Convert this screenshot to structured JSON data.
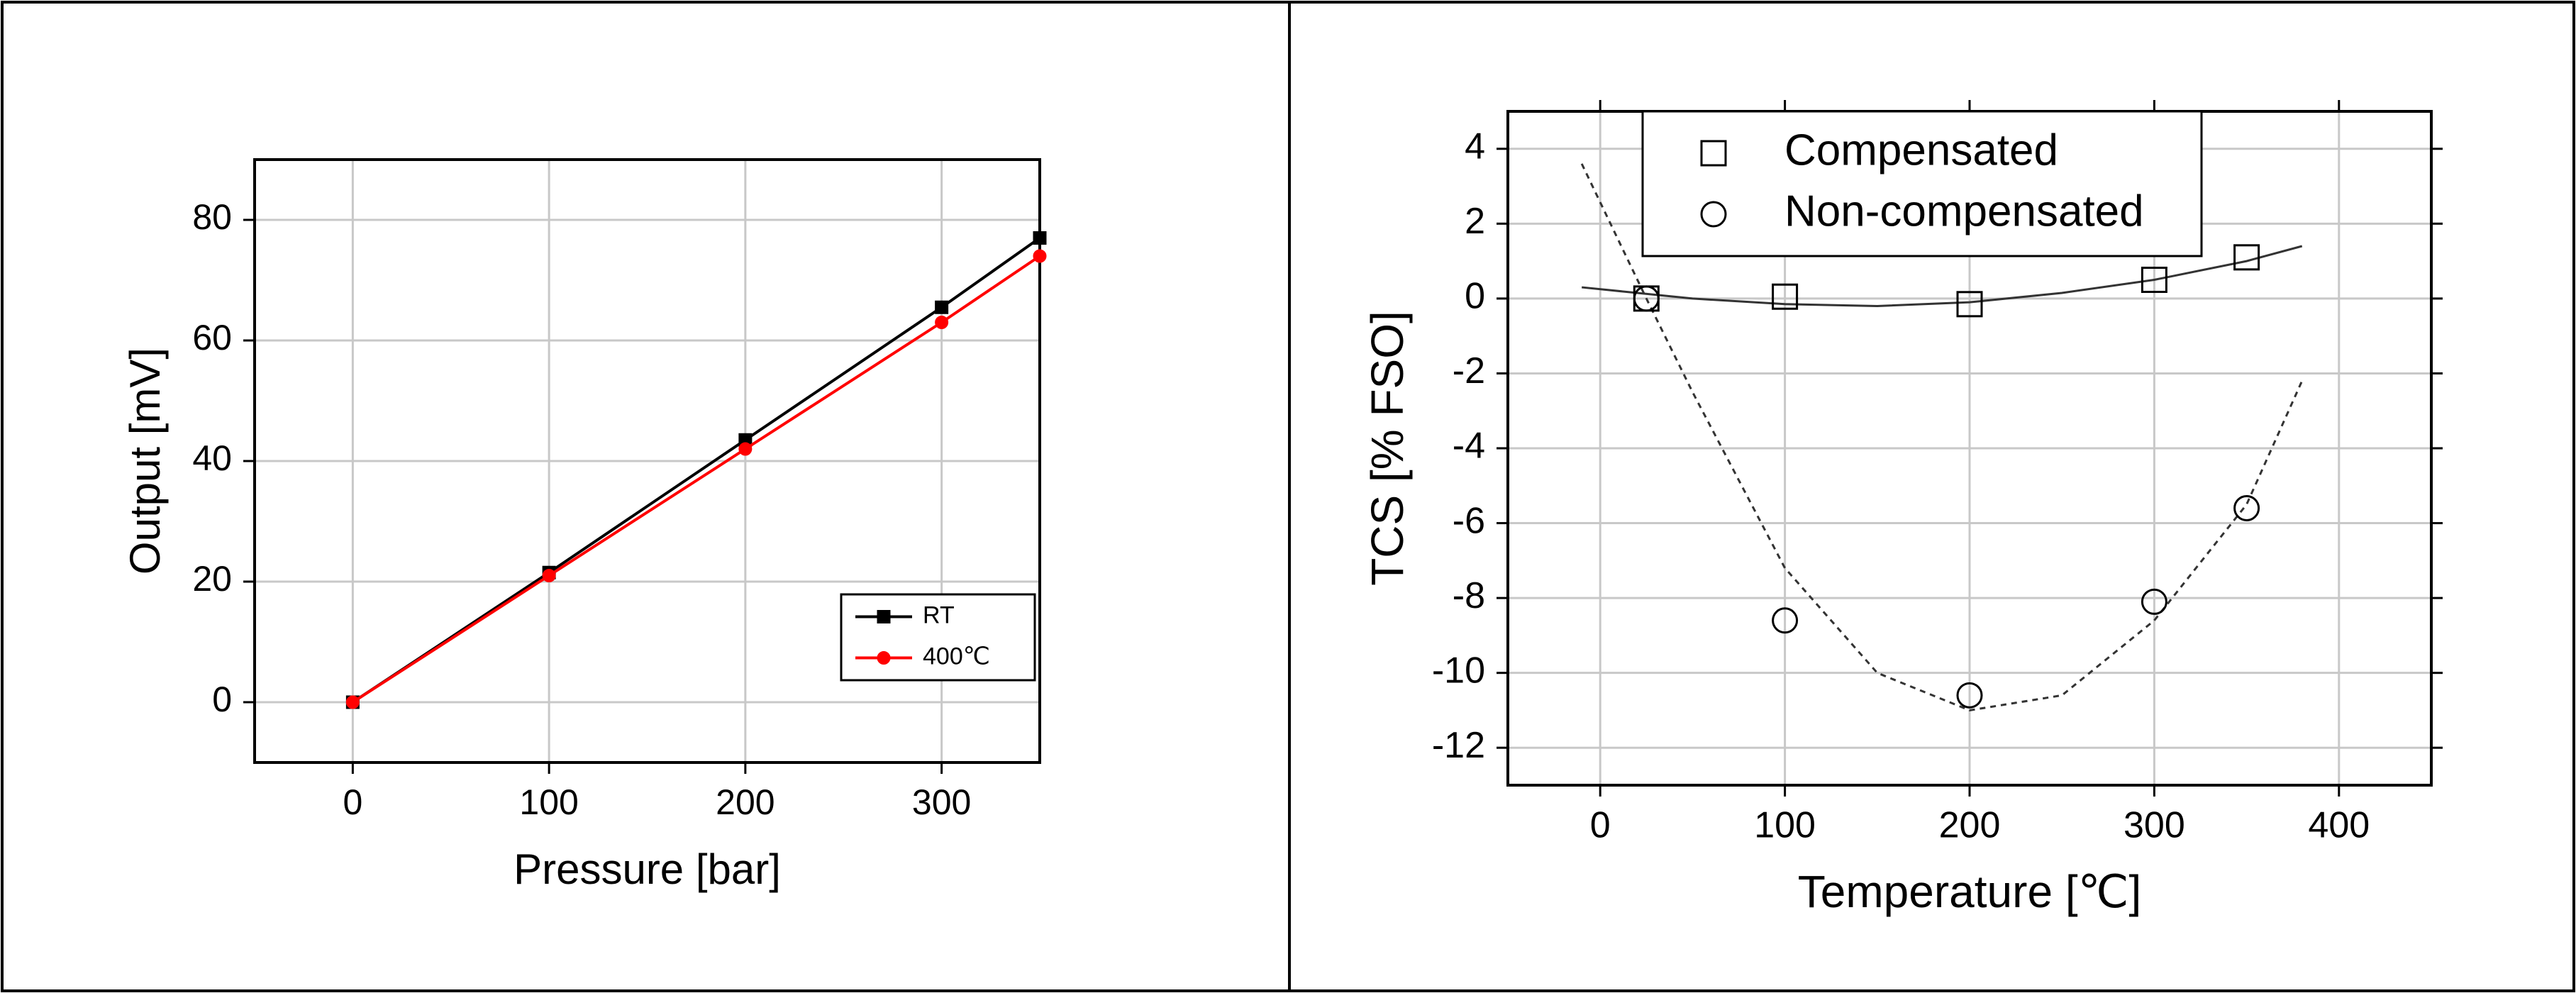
{
  "chart_data": [
    {
      "type": "line",
      "xlabel": "Pressure [bar]",
      "ylabel": "Output [mV]",
      "x": [
        0,
        100,
        200,
        300,
        350
      ],
      "series": [
        {
          "name": "RT",
          "color": "#000000",
          "marker": "square",
          "filled": true,
          "values": [
            0,
            21.5,
            43.5,
            65.5,
            77
          ]
        },
        {
          "name": "400℃",
          "color": "#ff0000",
          "marker": "circle",
          "filled": true,
          "values": [
            0,
            21,
            42,
            63,
            74
          ]
        }
      ],
      "xlim": [
        -50,
        350
      ],
      "ylim": [
        -10,
        90
      ],
      "xticks": [
        0,
        100,
        200,
        300
      ],
      "yticks": [
        0,
        20,
        40,
        60,
        80
      ],
      "grid": true,
      "legend": "lower right"
    },
    {
      "type": "scatter",
      "xlabel": "Temperature [℃]",
      "ylabel": "TCS [% FSO]",
      "x": [
        25,
        100,
        200,
        300,
        350
      ],
      "series": [
        {
          "name": "Compensated",
          "color": "#000000",
          "marker": "square",
          "filled": false,
          "values": [
            0,
            0.05,
            -0.15,
            0.5,
            1.1
          ]
        },
        {
          "name": "Non-compensated",
          "color": "#000000",
          "marker": "circle",
          "filled": false,
          "values": [
            0,
            -8.6,
            -10.6,
            -8.1,
            -5.6
          ]
        }
      ],
      "fits": [
        {
          "style": "solid",
          "x": [
            -10,
            50,
            100,
            150,
            200,
            250,
            300,
            350,
            380
          ],
          "values": [
            0.3,
            0.0,
            -0.15,
            -0.2,
            -0.1,
            0.15,
            0.5,
            1.0,
            1.4
          ]
        },
        {
          "style": "dashed",
          "x": [
            -10,
            25,
            50,
            100,
            150,
            200,
            250,
            300,
            350,
            380
          ],
          "values": [
            3.6,
            0,
            -2.5,
            -7.2,
            -10,
            -11,
            -10.6,
            -8.6,
            -5.5,
            -2.2
          ]
        }
      ],
      "xlim": [
        -50,
        450
      ],
      "ylim": [
        -13,
        5
      ],
      "xticks": [
        0,
        100,
        200,
        300,
        400
      ],
      "yticks": [
        -12,
        -10,
        -8,
        -6,
        -4,
        -2,
        0,
        2,
        4
      ],
      "grid": true,
      "legend": "upper left"
    }
  ]
}
